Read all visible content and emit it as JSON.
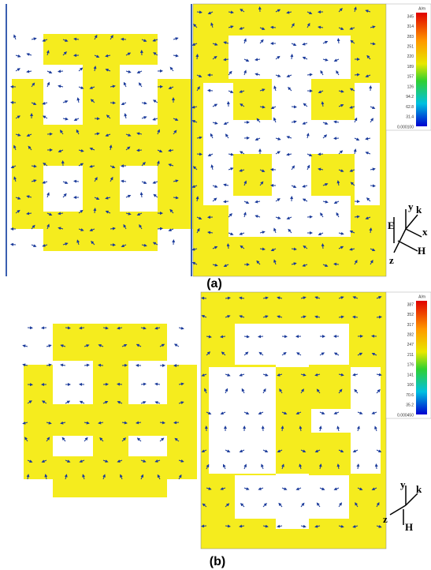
{
  "panels": [
    {
      "label": "(a)",
      "colorbar": {
        "unit": "A/m",
        "ticks": [
          "345",
          "314",
          "283",
          "251",
          "220",
          "189",
          "157",
          "126",
          "94.2",
          "62.8",
          "31.4",
          "0.000100"
        ]
      },
      "axes": [
        "y",
        "k",
        "E",
        "x",
        "H",
        "z"
      ]
    },
    {
      "label": "(b)",
      "colorbar": {
        "unit": "A/m",
        "ticks": [
          "387",
          "352",
          "317",
          "282",
          "247",
          "211",
          "176",
          "141",
          "106",
          "70.6",
          "35.2",
          "0.000450"
        ]
      },
      "axes": [
        "y",
        "k",
        "z",
        "H"
      ]
    }
  ]
}
